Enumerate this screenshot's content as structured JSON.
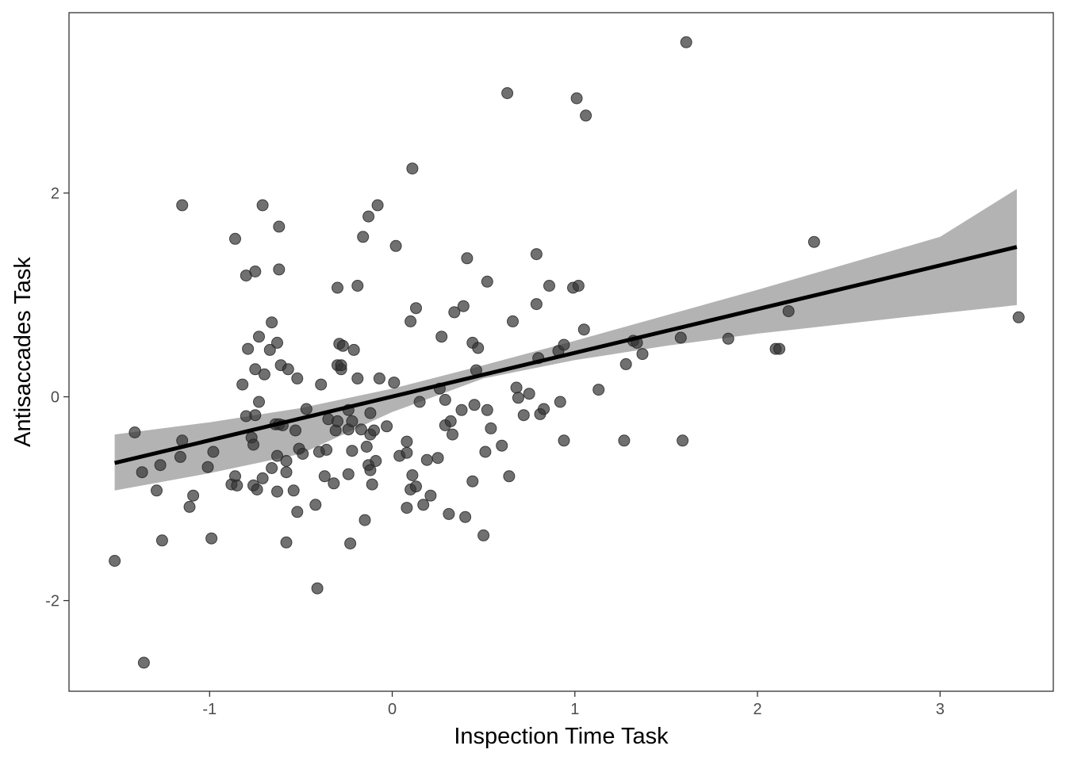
{
  "chart_data": {
    "type": "scatter",
    "xlabel": "Inspection Time Task",
    "ylabel": "Antisaccades Task",
    "xlim": [
      -1.77,
      3.62
    ],
    "ylim": [
      -2.89,
      3.77
    ],
    "xticks": [
      -1,
      0,
      1,
      2,
      3
    ],
    "xtick_labels": [
      "-1",
      "0",
      "1",
      "2",
      "3"
    ],
    "yticks": [
      -2,
      0,
      2
    ],
    "ytick_labels": [
      "-2",
      "0",
      "2"
    ],
    "grid": false,
    "legend": "none",
    "point_color": "#333333",
    "point_opacity": 0.7,
    "fit_line": {
      "color": "#000000",
      "x": [
        -1.52,
        3.42
      ],
      "y": [
        -0.65,
        1.47
      ]
    },
    "confidence_band": {
      "color": "#b3b3b3",
      "x": [
        -1.52,
        -1.0,
        -0.5,
        0.0,
        0.5,
        1.0,
        1.5,
        2.0,
        2.5,
        3.0,
        3.42
      ],
      "upper": [
        -0.37,
        -0.25,
        -0.11,
        0.08,
        0.31,
        0.55,
        0.8,
        1.05,
        1.31,
        1.57,
        2.04
      ],
      "lower": [
        -0.92,
        -0.75,
        -0.56,
        -0.15,
        0.18,
        0.36,
        0.5,
        0.62,
        0.72,
        0.82,
        0.9
      ]
    },
    "points": [
      {
        "x": -1.52,
        "y": -1.61
      },
      {
        "x": -1.41,
        "y": -0.35
      },
      {
        "x": -1.37,
        "y": -0.74
      },
      {
        "x": -1.36,
        "y": -2.61
      },
      {
        "x": -1.29,
        "y": -0.92
      },
      {
        "x": -1.27,
        "y": -0.67
      },
      {
        "x": -1.26,
        "y": -1.41
      },
      {
        "x": -1.16,
        "y": -0.59
      },
      {
        "x": -1.15,
        "y": 1.88
      },
      {
        "x": -1.15,
        "y": -0.43
      },
      {
        "x": -1.11,
        "y": -1.08
      },
      {
        "x": -1.09,
        "y": -0.97
      },
      {
        "x": -1.01,
        "y": -0.69
      },
      {
        "x": -0.99,
        "y": -1.39
      },
      {
        "x": -0.98,
        "y": -0.54
      },
      {
        "x": -0.88,
        "y": -0.86
      },
      {
        "x": -0.86,
        "y": 1.55
      },
      {
        "x": -0.86,
        "y": -0.78
      },
      {
        "x": -0.85,
        "y": -0.87
      },
      {
        "x": -0.82,
        "y": 0.12
      },
      {
        "x": -0.8,
        "y": 1.19
      },
      {
        "x": -0.8,
        "y": -0.19
      },
      {
        "x": -0.79,
        "y": 0.47
      },
      {
        "x": -0.77,
        "y": -0.4
      },
      {
        "x": -0.76,
        "y": -0.47
      },
      {
        "x": -0.76,
        "y": -0.87
      },
      {
        "x": -0.75,
        "y": 1.23
      },
      {
        "x": -0.75,
        "y": -0.18
      },
      {
        "x": -0.75,
        "y": 0.27
      },
      {
        "x": -0.74,
        "y": -0.91
      },
      {
        "x": -0.73,
        "y": -0.05
      },
      {
        "x": -0.73,
        "y": 0.59
      },
      {
        "x": -0.71,
        "y": 1.88
      },
      {
        "x": -0.71,
        "y": -0.8
      },
      {
        "x": -0.7,
        "y": 0.22
      },
      {
        "x": -0.67,
        "y": 0.46
      },
      {
        "x": -0.66,
        "y": -0.7
      },
      {
        "x": -0.66,
        "y": 0.73
      },
      {
        "x": -0.64,
        "y": -0.27
      },
      {
        "x": -0.63,
        "y": 0.53
      },
      {
        "x": -0.63,
        "y": -0.93
      },
      {
        "x": -0.63,
        "y": -0.58
      },
      {
        "x": -0.62,
        "y": -0.27
      },
      {
        "x": -0.62,
        "y": 1.67
      },
      {
        "x": -0.62,
        "y": 1.25
      },
      {
        "x": -0.61,
        "y": 0.31
      },
      {
        "x": -0.6,
        "y": -0.28
      },
      {
        "x": -0.58,
        "y": -0.63
      },
      {
        "x": -0.58,
        "y": -0.74
      },
      {
        "x": -0.58,
        "y": -1.43
      },
      {
        "x": -0.57,
        "y": 0.27
      },
      {
        "x": -0.54,
        "y": -0.92
      },
      {
        "x": -0.53,
        "y": -0.33
      },
      {
        "x": -0.52,
        "y": 0.18
      },
      {
        "x": -0.52,
        "y": -1.13
      },
      {
        "x": -0.51,
        "y": -0.51
      },
      {
        "x": -0.49,
        "y": -0.56
      },
      {
        "x": -0.47,
        "y": -0.12
      },
      {
        "x": -0.42,
        "y": -1.06
      },
      {
        "x": -0.41,
        "y": -1.88
      },
      {
        "x": -0.4,
        "y": -0.54
      },
      {
        "x": -0.39,
        "y": 0.12
      },
      {
        "x": -0.37,
        "y": -0.78
      },
      {
        "x": -0.36,
        "y": -0.52
      },
      {
        "x": -0.35,
        "y": -0.22
      },
      {
        "x": -0.32,
        "y": -0.85
      },
      {
        "x": -0.31,
        "y": -0.33
      },
      {
        "x": -0.3,
        "y": 1.07
      },
      {
        "x": -0.3,
        "y": 0.31
      },
      {
        "x": -0.3,
        "y": -0.24
      },
      {
        "x": -0.29,
        "y": 0.52
      },
      {
        "x": -0.28,
        "y": 0.27
      },
      {
        "x": -0.28,
        "y": 0.31
      },
      {
        "x": -0.27,
        "y": 0.5
      },
      {
        "x": -0.24,
        "y": -0.32
      },
      {
        "x": -0.24,
        "y": -0.13
      },
      {
        "x": -0.24,
        "y": -0.76
      },
      {
        "x": -0.23,
        "y": -1.44
      },
      {
        "x": -0.22,
        "y": -0.24
      },
      {
        "x": -0.22,
        "y": -0.53
      },
      {
        "x": -0.21,
        "y": 0.46
      },
      {
        "x": -0.19,
        "y": 1.09
      },
      {
        "x": -0.19,
        "y": 0.18
      },
      {
        "x": -0.17,
        "y": -0.32
      },
      {
        "x": -0.16,
        "y": 1.57
      },
      {
        "x": -0.15,
        "y": -1.21
      },
      {
        "x": -0.14,
        "y": -0.49
      },
      {
        "x": -0.13,
        "y": -0.67
      },
      {
        "x": -0.13,
        "y": 1.77
      },
      {
        "x": -0.12,
        "y": -0.72
      },
      {
        "x": -0.12,
        "y": -0.37
      },
      {
        "x": -0.12,
        "y": -0.16
      },
      {
        "x": -0.11,
        "y": -0.86
      },
      {
        "x": -0.1,
        "y": -0.33
      },
      {
        "x": -0.09,
        "y": -0.63
      },
      {
        "x": -0.08,
        "y": 1.88
      },
      {
        "x": -0.07,
        "y": 0.18
      },
      {
        "x": -0.03,
        "y": -0.29
      },
      {
        "x": 0.01,
        "y": 0.14
      },
      {
        "x": 0.02,
        "y": 1.48
      },
      {
        "x": 0.04,
        "y": -0.58
      },
      {
        "x": 0.08,
        "y": -0.55
      },
      {
        "x": 0.08,
        "y": -0.44
      },
      {
        "x": 0.08,
        "y": -1.09
      },
      {
        "x": 0.1,
        "y": -0.91
      },
      {
        "x": 0.1,
        "y": 0.74
      },
      {
        "x": 0.11,
        "y": 2.24
      },
      {
        "x": 0.11,
        "y": -0.77
      },
      {
        "x": 0.13,
        "y": -0.88
      },
      {
        "x": 0.13,
        "y": 0.87
      },
      {
        "x": 0.15,
        "y": -0.05
      },
      {
        "x": 0.17,
        "y": -1.06
      },
      {
        "x": 0.19,
        "y": -0.62
      },
      {
        "x": 0.21,
        "y": -0.97
      },
      {
        "x": 0.25,
        "y": -0.6
      },
      {
        "x": 0.26,
        "y": 0.08
      },
      {
        "x": 0.27,
        "y": 0.59
      },
      {
        "x": 0.29,
        "y": -0.28
      },
      {
        "x": 0.29,
        "y": -0.03
      },
      {
        "x": 0.31,
        "y": -1.15
      },
      {
        "x": 0.32,
        "y": -0.24
      },
      {
        "x": 0.33,
        "y": -0.37
      },
      {
        "x": 0.34,
        "y": 0.83
      },
      {
        "x": 0.38,
        "y": -0.13
      },
      {
        "x": 0.39,
        "y": 0.89
      },
      {
        "x": 0.4,
        "y": -1.18
      },
      {
        "x": 0.41,
        "y": 1.36
      },
      {
        "x": 0.44,
        "y": 0.53
      },
      {
        "x": 0.44,
        "y": -0.83
      },
      {
        "x": 0.45,
        "y": -0.08
      },
      {
        "x": 0.46,
        "y": 0.26
      },
      {
        "x": 0.47,
        "y": 0.48
      },
      {
        "x": 0.5,
        "y": -1.36
      },
      {
        "x": 0.51,
        "y": -0.54
      },
      {
        "x": 0.52,
        "y": 1.13
      },
      {
        "x": 0.52,
        "y": -0.13
      },
      {
        "x": 0.54,
        "y": -0.31
      },
      {
        "x": 0.6,
        "y": -0.48
      },
      {
        "x": 0.63,
        "y": 2.98
      },
      {
        "x": 0.64,
        "y": -0.78
      },
      {
        "x": 0.66,
        "y": 0.74
      },
      {
        "x": 0.68,
        "y": 0.09
      },
      {
        "x": 0.69,
        "y": -0.01
      },
      {
        "x": 0.72,
        "y": -0.18
      },
      {
        "x": 0.75,
        "y": 0.03
      },
      {
        "x": 0.79,
        "y": 0.91
      },
      {
        "x": 0.79,
        "y": 1.4
      },
      {
        "x": 0.8,
        "y": 0.38
      },
      {
        "x": 0.81,
        "y": -0.17
      },
      {
        "x": 0.83,
        "y": -0.12
      },
      {
        "x": 0.86,
        "y": 1.09
      },
      {
        "x": 0.91,
        "y": 0.45
      },
      {
        "x": 0.92,
        "y": -0.05
      },
      {
        "x": 0.94,
        "y": -0.43
      },
      {
        "x": 0.94,
        "y": 0.51
      },
      {
        "x": 0.99,
        "y": 1.07
      },
      {
        "x": 1.01,
        "y": 2.93
      },
      {
        "x": 1.02,
        "y": 1.09
      },
      {
        "x": 1.05,
        "y": 0.66
      },
      {
        "x": 1.06,
        "y": 2.76
      },
      {
        "x": 1.13,
        "y": 0.07
      },
      {
        "x": 1.27,
        "y": -0.43
      },
      {
        "x": 1.28,
        "y": 0.32
      },
      {
        "x": 1.32,
        "y": 0.55
      },
      {
        "x": 1.34,
        "y": 0.53
      },
      {
        "x": 1.37,
        "y": 0.42
      },
      {
        "x": 1.58,
        "y": 0.58
      },
      {
        "x": 1.59,
        "y": -0.43
      },
      {
        "x": 1.61,
        "y": 3.48
      },
      {
        "x": 1.84,
        "y": 0.57
      },
      {
        "x": 2.1,
        "y": 0.47
      },
      {
        "x": 2.12,
        "y": 0.47
      },
      {
        "x": 2.17,
        "y": 0.84
      },
      {
        "x": 2.31,
        "y": 1.52
      },
      {
        "x": 3.43,
        "y": 0.78
      }
    ]
  }
}
